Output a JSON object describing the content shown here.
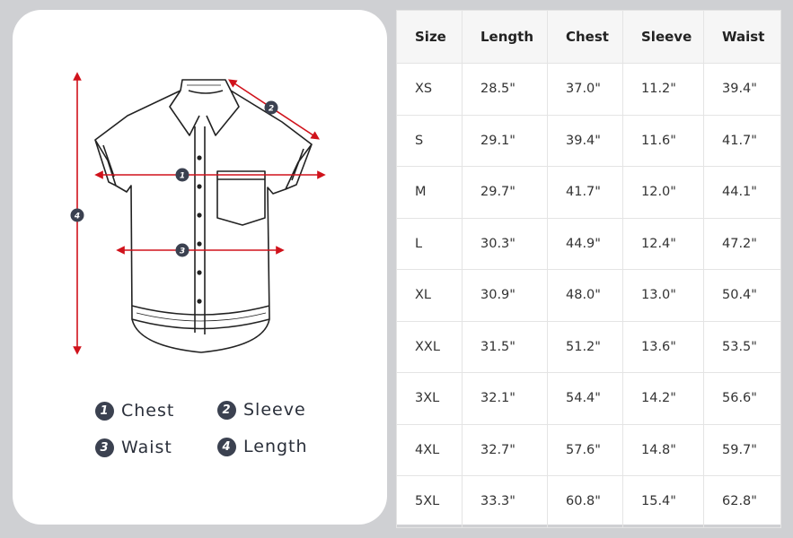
{
  "legend": [
    {
      "num": "1",
      "label": "Chest"
    },
    {
      "num": "2",
      "label": "Sleeve"
    },
    {
      "num": "3",
      "label": "Waist"
    },
    {
      "num": "4",
      "label": "Length"
    }
  ],
  "accent_color": "#d0121b",
  "badge_color": "#3b4150",
  "table": {
    "headers": [
      "Size",
      "Length",
      "Chest",
      "Sleeve",
      "Waist"
    ],
    "rows": [
      [
        "XS",
        "28.5\"",
        "37.0\"",
        "11.2\"",
        "39.4\""
      ],
      [
        "S",
        "29.1\"",
        "39.4\"",
        "11.6\"",
        "41.7\""
      ],
      [
        "M",
        "29.7\"",
        "41.7\"",
        "12.0\"",
        "44.1\""
      ],
      [
        "L",
        "30.3\"",
        "44.9\"",
        "12.4\"",
        "47.2\""
      ],
      [
        "XL",
        "30.9\"",
        "48.0\"",
        "13.0\"",
        "50.4\""
      ],
      [
        "XXL",
        "31.5\"",
        "51.2\"",
        "13.6\"",
        "53.5\""
      ],
      [
        "3XL",
        "32.1\"",
        "54.4\"",
        "14.2\"",
        "56.6\""
      ],
      [
        "4XL",
        "32.7\"",
        "57.6\"",
        "14.8\"",
        "59.7\""
      ],
      [
        "5XL",
        "33.3\"",
        "60.8\"",
        "15.4\"",
        "62.8\""
      ]
    ]
  }
}
